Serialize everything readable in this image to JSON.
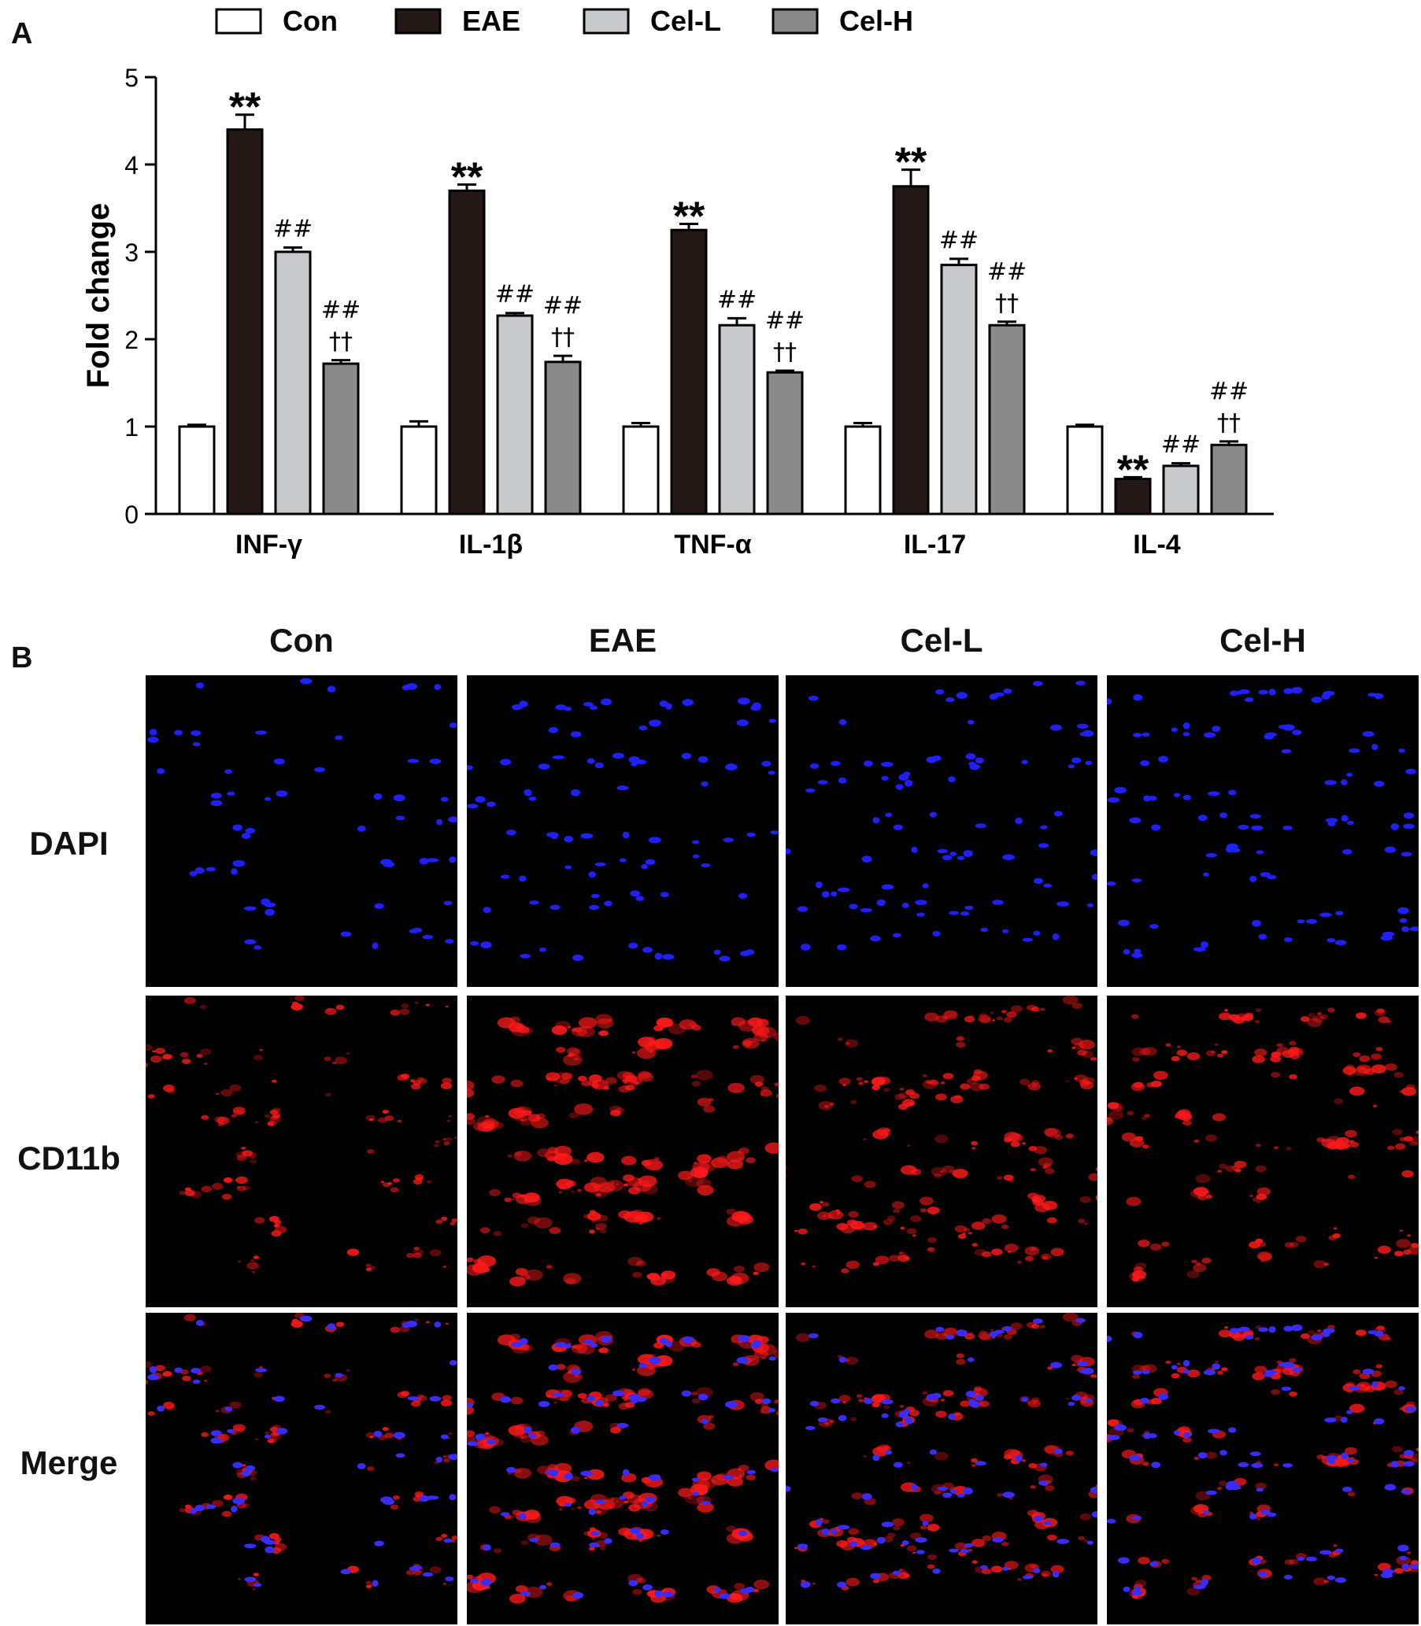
{
  "panel_a_label": "A",
  "panel_b_label": "B",
  "chart_data": {
    "type": "bar",
    "title": "",
    "xlabel": "",
    "ylabel": "Fold change",
    "ylim": [
      0,
      5
    ],
    "yticks": [
      "0",
      "1",
      "2",
      "3",
      "4",
      "5"
    ],
    "categories": [
      "INF-γ",
      "IL-1β",
      "TNF-α",
      "IL-17",
      "IL-4"
    ],
    "series": [
      {
        "name": "Con",
        "color": "#ffffff",
        "values": [
          1.0,
          1.0,
          1.0,
          1.0,
          1.0
        ],
        "errors": [
          0.02,
          0.06,
          0.04,
          0.04,
          0.02
        ]
      },
      {
        "name": "EAE",
        "color": "#231815",
        "values": [
          4.4,
          3.7,
          3.25,
          3.75,
          0.4
        ],
        "errors": [
          0.17,
          0.07,
          0.07,
          0.19,
          0.02
        ]
      },
      {
        "name": "Cel-L",
        "color": "#c8c9ca",
        "values": [
          3.0,
          2.27,
          2.16,
          2.85,
          0.55
        ],
        "errors": [
          0.05,
          0.03,
          0.08,
          0.07,
          0.03
        ]
      },
      {
        "name": "Cel-H",
        "color": "#8a8a8a",
        "values": [
          1.72,
          1.74,
          1.62,
          2.16,
          0.79
        ],
        "errors": [
          0.04,
          0.07,
          0.02,
          0.04,
          0.04
        ]
      }
    ],
    "annotations": [
      [
        "",
        "**",
        "##",
        "##\n††"
      ],
      [
        "",
        "**",
        "##",
        "##\n††"
      ],
      [
        "",
        "**",
        "##",
        "##\n††"
      ],
      [
        "",
        "**",
        "##",
        "##\n††"
      ],
      [
        "",
        "**",
        "##",
        "##\n††"
      ]
    ],
    "legend_position": "top",
    "grid": false
  },
  "panel_b": {
    "columns": [
      "Con",
      "EAE",
      "Cel-L",
      "Cel-H"
    ],
    "rows": [
      "DAPI",
      "CD11b",
      "Merge"
    ]
  }
}
